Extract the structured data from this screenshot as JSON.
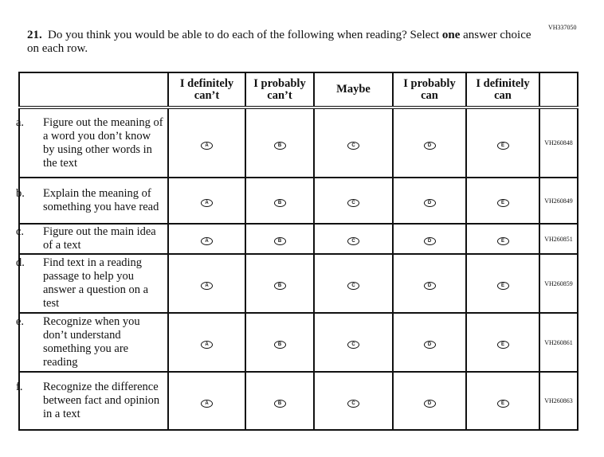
{
  "form_code": "VH337050",
  "question": {
    "number": "21.",
    "text_before": "Do you think you would be able to do each of the following when reading? Select ",
    "emphasis": "one",
    "text_after": " answer choice on each row."
  },
  "columns": [
    "I definitely can’t",
    "I probably can’t",
    "Maybe",
    "I probably can",
    "I definitely can"
  ],
  "options": [
    "A",
    "B",
    "C",
    "D",
    "E"
  ],
  "rows": [
    {
      "letter": "a.",
      "text": "Figure out the meaning of a word you don’t know by using other words in the text",
      "code": "VH260848"
    },
    {
      "letter": "b.",
      "text": "Explain the meaning of something you have read",
      "code": "VH260849"
    },
    {
      "letter": "c.",
      "text": "Figure out the main idea of a text",
      "code": "VH260851"
    },
    {
      "letter": "d.",
      "text": "Find text in a reading passage to help you answer a question on a test",
      "code": "VH260859"
    },
    {
      "letter": "e.",
      "text": "Recognize when you don’t understand something you are reading",
      "code": "VH260861"
    },
    {
      "letter": "f.",
      "text": "Recognize the difference between fact and opinion in a text",
      "code": "VH260863"
    }
  ]
}
